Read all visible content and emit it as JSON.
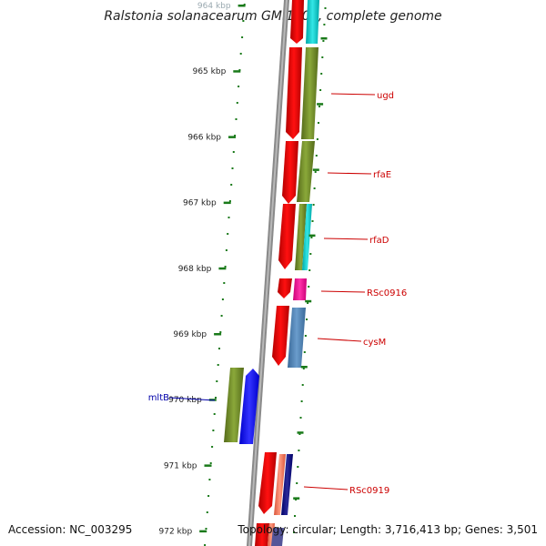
{
  "title": "Ralstonia solanacearum GMI1000, complete genome",
  "footer": {
    "accession": "Accession: NC_003295",
    "summary": "Topology: circular; Length: 3,716,413 bp; Genes: 3,501"
  },
  "colors": {
    "backbone": "#888888",
    "tick": "#1a7a1a",
    "label": "#cc0000",
    "label_other_strand": "#0000aa"
  },
  "ruler": {
    "ticks": [
      "964 kbp",
      "965 kbp",
      "966 kbp",
      "967 kbp",
      "968 kbp",
      "969 kbp",
      "970 kbp",
      "971 kbp",
      "972 kbp"
    ]
  },
  "genes": [
    {
      "label": "ugd",
      "color": "#cc0000"
    },
    {
      "label": "rfaE",
      "color": "#cc0000"
    },
    {
      "label": "rfaD",
      "color": "#cc0000"
    },
    {
      "label": "RSc0916",
      "color": "#cc0000"
    },
    {
      "label": "cysM",
      "color": "#cc0000"
    },
    {
      "label": "mltB",
      "color": "#0000aa"
    },
    {
      "label": "RSc0919",
      "color": "#cc0000"
    }
  ]
}
